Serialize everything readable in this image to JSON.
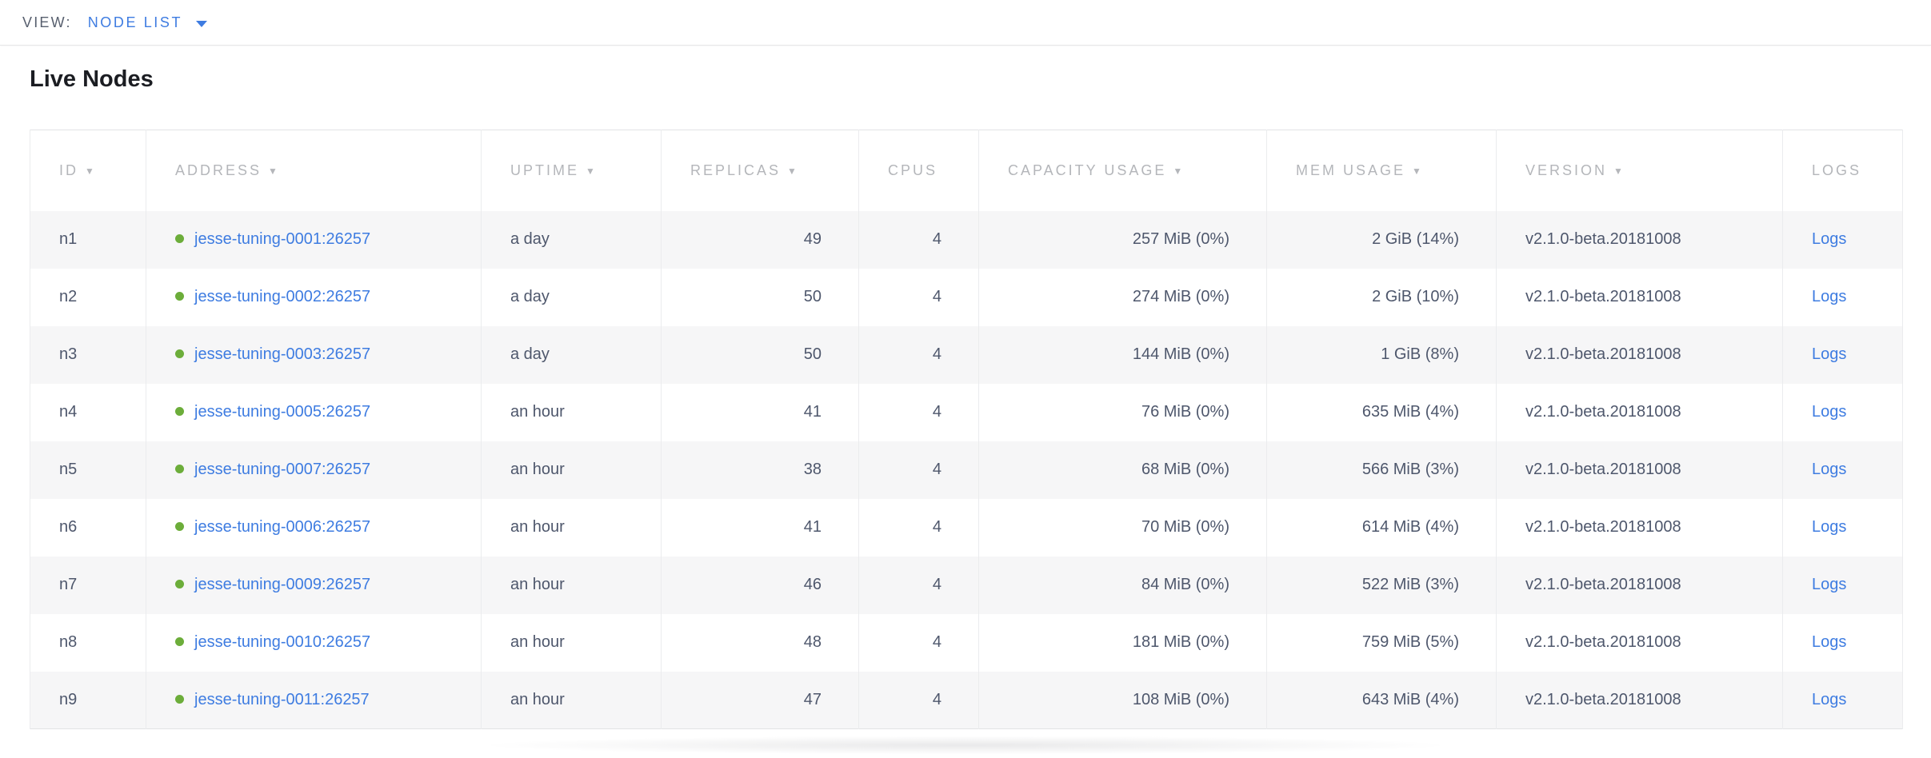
{
  "view_bar": {
    "label": "VIEW:",
    "selector": "NODE LIST"
  },
  "page": {
    "title": "Live Nodes"
  },
  "table": {
    "sort_arrow": "▼",
    "columns": [
      {
        "key": "id",
        "label": "ID",
        "sortable": true
      },
      {
        "key": "address",
        "label": "ADDRESS",
        "sortable": true
      },
      {
        "key": "uptime",
        "label": "UPTIME",
        "sortable": true
      },
      {
        "key": "replicas",
        "label": "REPLICAS",
        "sortable": true
      },
      {
        "key": "cpus",
        "label": "CPUS",
        "sortable": false
      },
      {
        "key": "capacity",
        "label": "CAPACITY USAGE",
        "sortable": true
      },
      {
        "key": "mem",
        "label": "MEM USAGE",
        "sortable": true
      },
      {
        "key": "version",
        "label": "VERSION",
        "sortable": true
      },
      {
        "key": "logs",
        "label": "LOGS",
        "sortable": false
      }
    ],
    "rows": [
      {
        "id": "n1",
        "status": "live",
        "address": "jesse-tuning-0001:26257",
        "uptime": "a day",
        "replicas": "49",
        "cpus": "4",
        "capacity": "257 MiB (0%)",
        "mem": "2 GiB (14%)",
        "version": "v2.1.0-beta.20181008",
        "logs": "Logs"
      },
      {
        "id": "n2",
        "status": "live",
        "address": "jesse-tuning-0002:26257",
        "uptime": "a day",
        "replicas": "50",
        "cpus": "4",
        "capacity": "274 MiB (0%)",
        "mem": "2 GiB (10%)",
        "version": "v2.1.0-beta.20181008",
        "logs": "Logs"
      },
      {
        "id": "n3",
        "status": "live",
        "address": "jesse-tuning-0003:26257",
        "uptime": "a day",
        "replicas": "50",
        "cpus": "4",
        "capacity": "144 MiB (0%)",
        "mem": "1 GiB (8%)",
        "version": "v2.1.0-beta.20181008",
        "logs": "Logs"
      },
      {
        "id": "n4",
        "status": "live",
        "address": "jesse-tuning-0005:26257",
        "uptime": "an hour",
        "replicas": "41",
        "cpus": "4",
        "capacity": "76 MiB (0%)",
        "mem": "635 MiB (4%)",
        "version": "v2.1.0-beta.20181008",
        "logs": "Logs"
      },
      {
        "id": "n5",
        "status": "live",
        "address": "jesse-tuning-0007:26257",
        "uptime": "an hour",
        "replicas": "38",
        "cpus": "4",
        "capacity": "68 MiB (0%)",
        "mem": "566 MiB (3%)",
        "version": "v2.1.0-beta.20181008",
        "logs": "Logs"
      },
      {
        "id": "n6",
        "status": "live",
        "address": "jesse-tuning-0006:26257",
        "uptime": "an hour",
        "replicas": "41",
        "cpus": "4",
        "capacity": "70 MiB (0%)",
        "mem": "614 MiB (4%)",
        "version": "v2.1.0-beta.20181008",
        "logs": "Logs"
      },
      {
        "id": "n7",
        "status": "live",
        "address": "jesse-tuning-0009:26257",
        "uptime": "an hour",
        "replicas": "46",
        "cpus": "4",
        "capacity": "84 MiB (0%)",
        "mem": "522 MiB (3%)",
        "version": "v2.1.0-beta.20181008",
        "logs": "Logs"
      },
      {
        "id": "n8",
        "status": "live",
        "address": "jesse-tuning-0010:26257",
        "uptime": "an hour",
        "replicas": "48",
        "cpus": "4",
        "capacity": "181 MiB (0%)",
        "mem": "759 MiB (5%)",
        "version": "v2.1.0-beta.20181008",
        "logs": "Logs"
      },
      {
        "id": "n9",
        "status": "live",
        "address": "jesse-tuning-0011:26257",
        "uptime": "an hour",
        "replicas": "47",
        "cpus": "4",
        "capacity": "108 MiB (0%)",
        "mem": "643 MiB (4%)",
        "version": "v2.1.0-beta.20181008",
        "logs": "Logs"
      }
    ]
  },
  "colors": {
    "accent_blue": "#3e7ce1",
    "link_blue": "#3e7ce1",
    "live_green": "#6cad3a",
    "header_gray": "#b4b6ba",
    "cell_text": "#4e576c",
    "row_stripe": "#f6f6f7"
  }
}
